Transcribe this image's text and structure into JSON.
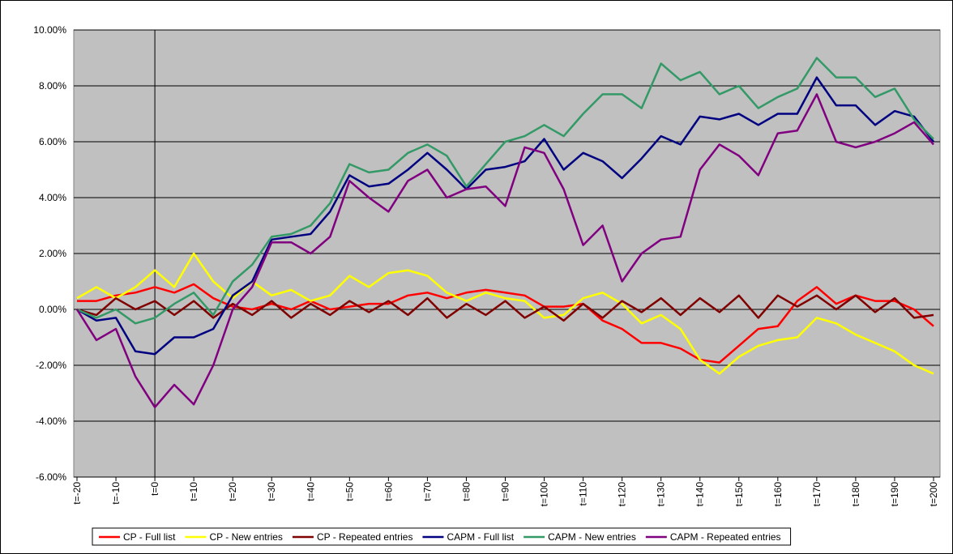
{
  "chart_data": {
    "type": "line",
    "x": [
      -20,
      -15,
      -10,
      -5,
      0,
      5,
      10,
      15,
      20,
      25,
      30,
      35,
      40,
      45,
      50,
      55,
      60,
      65,
      70,
      75,
      80,
      85,
      90,
      95,
      100,
      105,
      110,
      115,
      120,
      125,
      130,
      135,
      140,
      145,
      150,
      155,
      160,
      165,
      170,
      175,
      180,
      185,
      190,
      195,
      200
    ],
    "series": [
      {
        "name": "CP - Full list",
        "color": "#ff0000",
        "values": [
          0.3,
          0.3,
          0.5,
          0.6,
          0.8,
          0.6,
          0.9,
          0.4,
          0.1,
          0.0,
          0.2,
          0.0,
          0.3,
          0.0,
          0.1,
          0.2,
          0.2,
          0.5,
          0.6,
          0.4,
          0.6,
          0.7,
          0.6,
          0.5,
          0.1,
          0.1,
          0.2,
          -0.4,
          -0.7,
          -1.2,
          -1.2,
          -1.4,
          -1.8,
          -1.9,
          -1.3,
          -0.7,
          -0.6,
          0.3,
          0.8,
          0.2,
          0.5,
          0.3,
          0.3,
          0.0,
          -0.6
        ]
      },
      {
        "name": "CP - New entries",
        "color": "#ffff00",
        "values": [
          0.4,
          0.8,
          0.4,
          0.8,
          1.4,
          0.8,
          2.0,
          1.0,
          0.4,
          1.0,
          0.5,
          0.7,
          0.3,
          0.5,
          1.2,
          0.8,
          1.3,
          1.4,
          1.2,
          0.6,
          0.3,
          0.6,
          0.4,
          0.3,
          -0.3,
          -0.2,
          0.4,
          0.6,
          0.2,
          -0.5,
          -0.2,
          -0.7,
          -1.8,
          -2.3,
          -1.7,
          -1.3,
          -1.1,
          -1.0,
          -0.3,
          -0.5,
          -0.9,
          -1.2,
          -1.5,
          -2.0,
          -2.3
        ]
      },
      {
        "name": "CP - Repeated entries",
        "color": "#800000",
        "values": [
          0,
          -0.2,
          0.4,
          0,
          0.3,
          -0.2,
          0.3,
          -0.3,
          0.2,
          -0.2,
          0.3,
          -0.3,
          0.2,
          -0.2,
          0.3,
          -0.1,
          0.3,
          -0.2,
          0.4,
          -0.3,
          0.2,
          -0.2,
          0.3,
          -0.3,
          0.1,
          -0.4,
          0.2,
          -0.3,
          0.3,
          -0.1,
          0.4,
          -0.2,
          0.4,
          -0.1,
          0.5,
          -0.3,
          0.5,
          0.1,
          0.5,
          0,
          0.5,
          -0.1,
          0.4,
          -0.3,
          -0.2
        ]
      },
      {
        "name": "CAPM - Full list",
        "color": "#000080",
        "values": [
          0,
          -0.4,
          -0.3,
          -1.5,
          -1.6,
          -1.0,
          -1.0,
          -0.7,
          0.5,
          1.0,
          2.5,
          2.6,
          2.7,
          3.5,
          4.8,
          4.4,
          4.5,
          5.0,
          5.6,
          5.0,
          4.3,
          5.0,
          5.1,
          5.3,
          6.1,
          5.0,
          5.6,
          5.3,
          4.7,
          5.4,
          6.2,
          5.9,
          6.9,
          6.8,
          7.0,
          6.6,
          7.0,
          7.0,
          8.3,
          7.3,
          7.3,
          6.6,
          7.1,
          6.9,
          6.0
        ]
      },
      {
        "name": "CAPM - New entries",
        "color": "#339966",
        "values": [
          0,
          -0.3,
          0,
          -0.5,
          -0.3,
          0.2,
          0.6,
          -0.2,
          1.0,
          1.6,
          2.6,
          2.7,
          3.0,
          3.8,
          5.2,
          4.9,
          5.0,
          5.6,
          5.9,
          5.5,
          4.4,
          5.2,
          6.0,
          6.2,
          6.6,
          6.2,
          7.0,
          7.7,
          7.7,
          7.2,
          8.8,
          8.2,
          8.5,
          7.7,
          8.0,
          7.2,
          7.6,
          7.9,
          9.0,
          8.3,
          8.3,
          7.6,
          7.9,
          6.8,
          6.1
        ]
      },
      {
        "name": "CAPM - Repeated entries",
        "color": "#800080",
        "values": [
          0,
          -1.1,
          -0.7,
          -2.4,
          -3.5,
          -2.7,
          -3.4,
          -2.0,
          0.0,
          0.8,
          2.4,
          2.4,
          2.0,
          2.6,
          4.6,
          4.0,
          3.5,
          4.6,
          5.0,
          4.0,
          4.3,
          4.4,
          3.7,
          5.8,
          5.6,
          4.3,
          2.3,
          3.0,
          1.0,
          2.0,
          2.5,
          2.6,
          5.0,
          5.9,
          5.5,
          4.8,
          6.3,
          6.4,
          7.7,
          6.0,
          5.8,
          6.0,
          6.3,
          6.7,
          5.9
        ]
      }
    ],
    "xlim": [
      -20,
      200
    ],
    "xticks": [
      {
        "value": -20,
        "label": "t=-20"
      },
      {
        "value": -10,
        "label": "t=-10"
      },
      {
        "value": 0,
        "label": "t=0"
      },
      {
        "value": 10,
        "label": "t=10"
      },
      {
        "value": 20,
        "label": "t=20"
      },
      {
        "value": 30,
        "label": "t=30"
      },
      {
        "value": 40,
        "label": "t=40"
      },
      {
        "value": 50,
        "label": "t=50"
      },
      {
        "value": 60,
        "label": "t=60"
      },
      {
        "value": 70,
        "label": "t=70"
      },
      {
        "value": 80,
        "label": "t=80"
      },
      {
        "value": 90,
        "label": "t=90"
      },
      {
        "value": 100,
        "label": "t=100"
      },
      {
        "value": 110,
        "label": "t=110"
      },
      {
        "value": 120,
        "label": "t=120"
      },
      {
        "value": 130,
        "label": "t=130"
      },
      {
        "value": 140,
        "label": "t=140"
      },
      {
        "value": 150,
        "label": "t=150"
      },
      {
        "value": 160,
        "label": "t=160"
      },
      {
        "value": 170,
        "label": "t=170"
      },
      {
        "value": 180,
        "label": "t=180"
      },
      {
        "value": 190,
        "label": "t=190"
      },
      {
        "value": 200,
        "label": "t=200"
      }
    ],
    "ylim": [
      -6,
      10
    ],
    "yticks": [
      {
        "value": -6,
        "label": "-6.00%"
      },
      {
        "value": -4,
        "label": "-4.00%"
      },
      {
        "value": -2,
        "label": "-2.00%"
      },
      {
        "value": 0,
        "label": "0.00%"
      },
      {
        "value": 2,
        "label": "2.00%"
      },
      {
        "value": 4,
        "label": "4.00%"
      },
      {
        "value": 6,
        "label": "6.00%"
      },
      {
        "value": 8,
        "label": "8.00%"
      },
      {
        "value": 10,
        "label": "10.00%"
      }
    ],
    "grid": true,
    "y_axis_at_x": 0,
    "legend": "bottom"
  }
}
